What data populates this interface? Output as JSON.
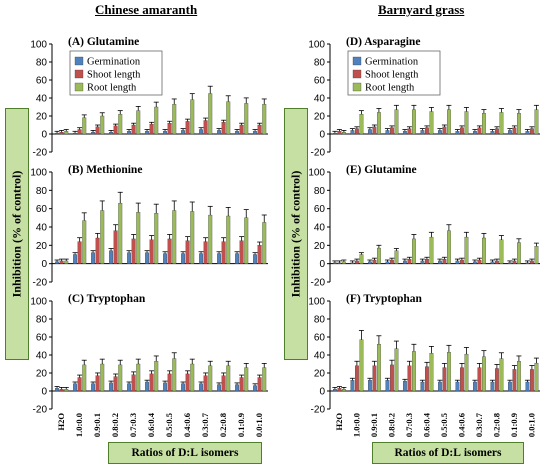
{
  "columns": [
    {
      "title": "Chinese amaranth"
    },
    {
      "title": "Barnyard grass"
    }
  ],
  "ylabel": "Inhibition (% of control)",
  "xlabel_prefix": "Ratios of ",
  "xlabel_dl": "D:L",
  "xlabel_suffix": " isomers",
  "legend": [
    "Germination",
    "Shoot length",
    "Root length"
  ],
  "colors": {
    "germination": "#4f81bd",
    "shoot": "#c0504d",
    "root": "#9bbb59",
    "label_box": "#c6e0a3"
  },
  "chart_data": [
    {
      "type": "bar",
      "title": "(A) Glutamine",
      "column": "Chinese amaranth",
      "legend": true,
      "categories": [
        "H2O",
        "1.0:0.0",
        "0.9:0.1",
        "0.8:0.2",
        "0.7:0.3",
        "0.6:0.4",
        "0.5:0.5",
        "0.4:0.6",
        "0.3:0.7",
        "0.2:0.8",
        "0.1:0.9",
        "0.0:1.0"
      ],
      "ylim": [
        -20,
        100
      ],
      "yticks": [
        -20,
        0,
        20,
        40,
        60,
        80,
        100
      ],
      "series": [
        {
          "name": "Germination",
          "values": [
            1,
            1,
            2,
            2,
            3,
            3,
            3,
            4,
            5,
            4,
            3,
            3
          ]
        },
        {
          "name": "Shoot length",
          "values": [
            2,
            5,
            8,
            9,
            10,
            11,
            12,
            14,
            15,
            13,
            10,
            10
          ]
        },
        {
          "name": "Root length",
          "values": [
            3,
            18,
            20,
            22,
            26,
            30,
            33,
            38,
            45,
            36,
            34,
            33
          ]
        }
      ]
    },
    {
      "type": "bar",
      "title": "(B) Methionine",
      "column": "Chinese amaranth",
      "legend": false,
      "categories": [
        "H2O",
        "1.0:0.0",
        "0.9:0.1",
        "0.8:0.2",
        "0.7:0.3",
        "0.6:0.4",
        "0.5:0.5",
        "0.4:0.6",
        "0.3:0.7",
        "0.2:0.8",
        "0.1:0.9",
        "0.0:1.0"
      ],
      "ylim": [
        -20,
        100
      ],
      "yticks": [
        -20,
        0,
        20,
        40,
        60,
        80,
        100
      ],
      "series": [
        {
          "name": "Germination",
          "values": [
            2,
            10,
            12,
            14,
            12,
            12,
            11,
            11,
            11,
            11,
            11,
            10
          ]
        },
        {
          "name": "Shoot length",
          "values": [
            3,
            24,
            28,
            36,
            27,
            26,
            27,
            25,
            24,
            24,
            25,
            20
          ]
        },
        {
          "name": "Root length",
          "values": [
            3,
            47,
            58,
            66,
            56,
            55,
            58,
            57,
            53,
            52,
            50,
            45
          ]
        }
      ]
    },
    {
      "type": "bar",
      "title": "(C) Tryptophan",
      "column": "Chinese amaranth",
      "legend": false,
      "categories": [
        "H2O",
        "1.0:0.0",
        "0.9:0.1",
        "0.8:0.2",
        "0.7:0.3",
        "0.6:0.4",
        "0.5:0.5",
        "0.4:0.6",
        "0.3:0.7",
        "0.2:0.8",
        "0.1:0.9",
        "0.0:1.0"
      ],
      "ylim": [
        -20,
        100
      ],
      "yticks": [
        -20,
        0,
        20,
        40,
        60,
        80,
        100
      ],
      "series": [
        {
          "name": "Germination",
          "values": [
            3,
            8,
            8,
            9,
            8,
            10,
            9,
            8,
            8,
            7,
            7,
            6
          ]
        },
        {
          "name": "Shoot length",
          "values": [
            2,
            15,
            17,
            16,
            18,
            19,
            19,
            19,
            17,
            17,
            15,
            15
          ]
        },
        {
          "name": "Root length",
          "values": [
            2,
            29,
            30,
            29,
            30,
            33,
            36,
            30,
            28,
            28,
            26,
            26
          ]
        }
      ]
    },
    {
      "type": "bar",
      "title": "(D) Asparagine",
      "column": "Barnyard grass",
      "legend": true,
      "categories": [
        "H2O",
        "1.0:0.0",
        "0.9:0.1",
        "0.8:0.2",
        "0.7:0.3",
        "0.6:0.4",
        "0.5:0.5",
        "0.4:0.6",
        "0.3:0.7",
        "0.2:0.8",
        "0.1:0.9",
        "0.0:1.0"
      ],
      "ylim": [
        -20,
        100
      ],
      "yticks": [
        -20,
        0,
        20,
        40,
        60,
        80,
        100
      ],
      "series": [
        {
          "name": "Germination",
          "values": [
            1,
            4,
            5,
            4,
            3,
            4,
            4,
            3,
            3,
            3,
            4,
            3
          ]
        },
        {
          "name": "Shoot length",
          "values": [
            3,
            6,
            8,
            7,
            6,
            7,
            8,
            7,
            7,
            6,
            7,
            6
          ]
        },
        {
          "name": "Root length",
          "values": [
            2,
            22,
            24,
            27,
            27,
            25,
            27,
            25,
            23,
            24,
            23,
            27
          ]
        }
      ]
    },
    {
      "type": "bar",
      "title": "(E) Glutamine",
      "column": "Barnyard grass",
      "legend": false,
      "categories": [
        "H2O",
        "1.0:0.0",
        "0.9:0.1",
        "0.8:0.2",
        "0.7:0.3",
        "0.6:0.4",
        "0.5:0.5",
        "0.4:0.6",
        "0.3:0.7",
        "0.2:0.8",
        "0.1:0.9",
        "0.0:1.0"
      ],
      "ylim": [
        -20,
        100
      ],
      "yticks": [
        -20,
        0,
        20,
        40,
        60,
        80,
        100
      ],
      "series": [
        {
          "name": "Germination",
          "values": [
            1,
            1,
            2,
            2,
            3,
            3,
            3,
            3,
            2,
            2,
            1,
            1
          ]
        },
        {
          "name": "Shoot length",
          "values": [
            1,
            3,
            4,
            4,
            5,
            5,
            5,
            4,
            4,
            3,
            3,
            3
          ]
        },
        {
          "name": "Root length",
          "values": [
            2,
            10,
            17,
            14,
            27,
            29,
            36,
            29,
            28,
            26,
            23,
            19
          ]
        }
      ]
    },
    {
      "type": "bar",
      "title": "(F) Tryptophan",
      "column": "Barnyard grass",
      "legend": false,
      "categories": [
        "H2O",
        "1.0:0.0",
        "0.9:0.1",
        "0.8:0.2",
        "0.7:0.3",
        "0.6:0.4",
        "0.5:0.5",
        "0.4:0.6",
        "0.3:0.7",
        "0.2:0.8",
        "0.1:0.9",
        "0.0:1.0"
      ],
      "ylim": [
        -20,
        100
      ],
      "yticks": [
        -20,
        0,
        20,
        40,
        60,
        80,
        100
      ],
      "series": [
        {
          "name": "Germination",
          "values": [
            2,
            12,
            12,
            12,
            11,
            10,
            10,
            10,
            10,
            10,
            10,
            10
          ]
        },
        {
          "name": "Shoot length",
          "values": [
            3,
            28,
            28,
            29,
            28,
            27,
            26,
            26,
            26,
            25,
            24,
            24
          ]
        },
        {
          "name": "Root length",
          "values": [
            2,
            57,
            52,
            47,
            44,
            42,
            43,
            41,
            38,
            36,
            33,
            31
          ]
        }
      ]
    }
  ]
}
